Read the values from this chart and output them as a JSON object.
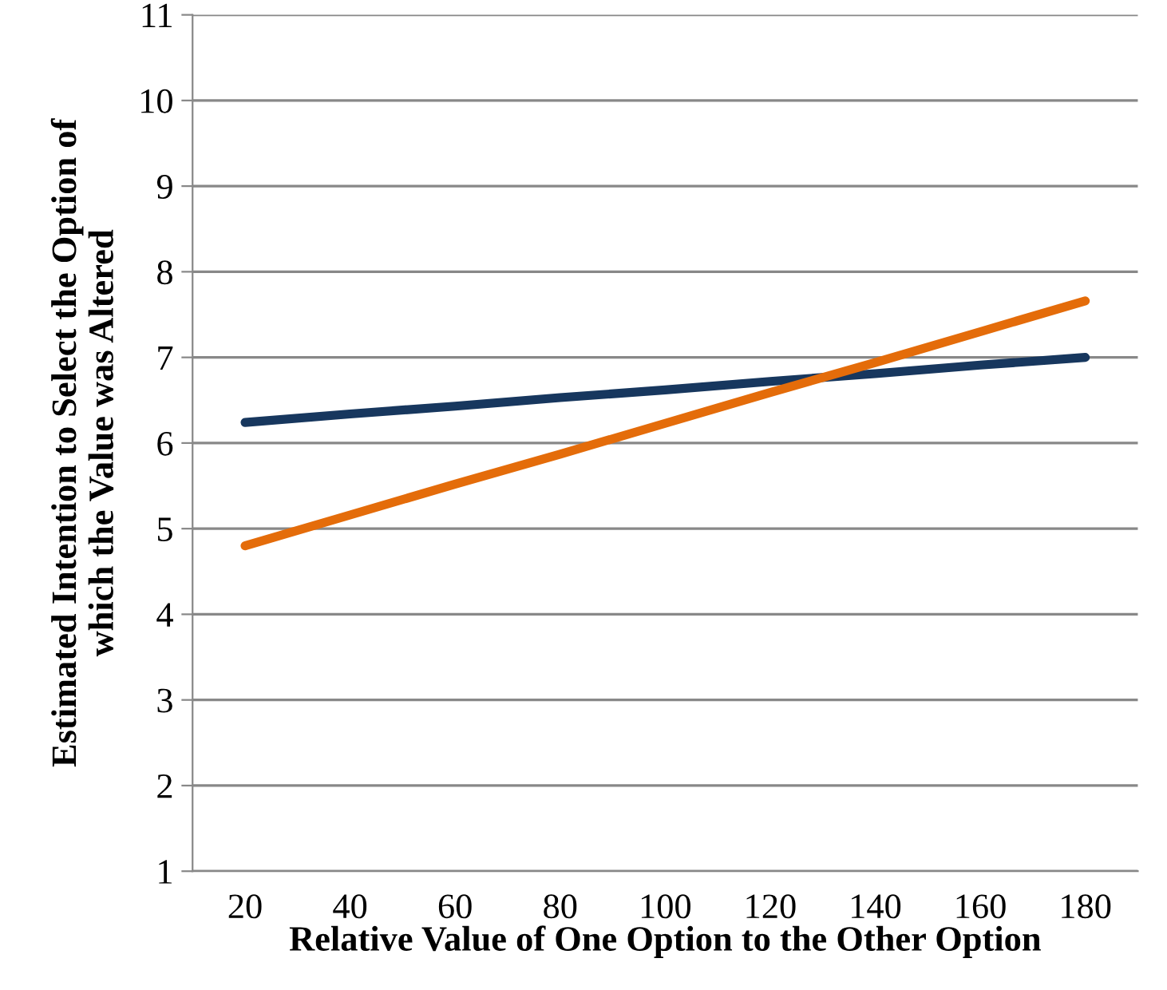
{
  "chart_data": {
    "type": "line",
    "xlabel": "Relative Value of One Option to the Other Option",
    "ylabel": "Estimated Intention to Select the Option of\nwhich the Value was Altered",
    "categories": [
      "20",
      "40",
      "60",
      "80",
      "100",
      "120",
      "140",
      "160",
      "180"
    ],
    "series": [
      {
        "color": "#17375e",
        "values": [
          6.24,
          6.34,
          6.43,
          6.53,
          6.62,
          6.72,
          6.81,
          6.91,
          7.0
        ]
      },
      {
        "color": "#e46c0a",
        "values": [
          4.8,
          5.16,
          5.52,
          5.87,
          6.23,
          6.59,
          6.94,
          7.3,
          7.66
        ]
      }
    ],
    "ylim": [
      1,
      11
    ],
    "yticks": [
      1,
      2,
      3,
      4,
      5,
      6,
      7,
      8,
      9,
      10,
      11
    ],
    "grid": "y",
    "marker": "none",
    "line_style": "solid"
  }
}
